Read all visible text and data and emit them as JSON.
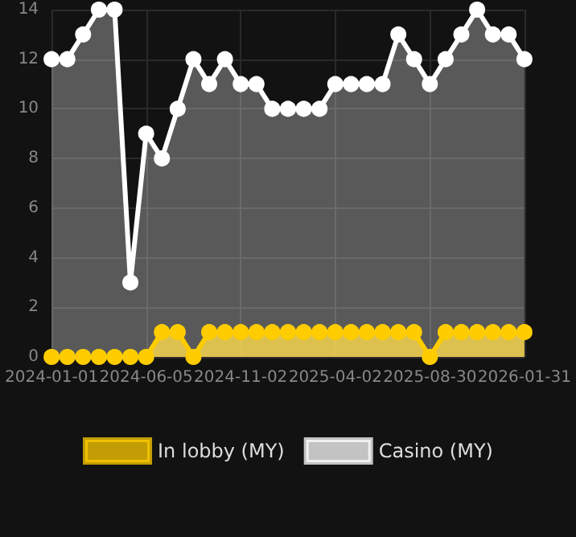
{
  "chart_data": {
    "type": "area",
    "categories": [
      "2024-01-01",
      null,
      null,
      null,
      null,
      null,
      "2024-06-05",
      null,
      null,
      null,
      null,
      null,
      "2024-11-02",
      null,
      null,
      null,
      null,
      null,
      "2025-04-02",
      null,
      null,
      null,
      null,
      null,
      "2025-08-30",
      null,
      null,
      null,
      null,
      null,
      "2026-01-31"
    ],
    "series": [
      {
        "name": "In lobby (MY)",
        "color": "#ffcc00",
        "values": [
          0,
          0,
          0,
          0,
          0,
          0,
          0,
          1,
          1,
          0,
          1,
          1,
          1,
          1,
          1,
          1,
          1,
          1,
          1,
          1,
          1,
          1,
          1,
          1,
          0,
          1,
          1,
          1,
          1,
          1,
          1
        ]
      },
      {
        "name": "Casino (MY)",
        "color": "#ffffff",
        "values": [
          12,
          12,
          13,
          14,
          14,
          3,
          9,
          8,
          10,
          12,
          11,
          12,
          11,
          11,
          10,
          10,
          10,
          10,
          11,
          11,
          11,
          11,
          13,
          12,
          11,
          12,
          13,
          14,
          13,
          13,
          12
        ]
      }
    ],
    "ylim": [
      0,
      14
    ],
    "yticks": [
      0,
      2,
      4,
      6,
      8,
      10,
      12,
      14
    ],
    "grid": true,
    "legend": "bottom",
    "marker": "circle",
    "line_style": "solid"
  }
}
